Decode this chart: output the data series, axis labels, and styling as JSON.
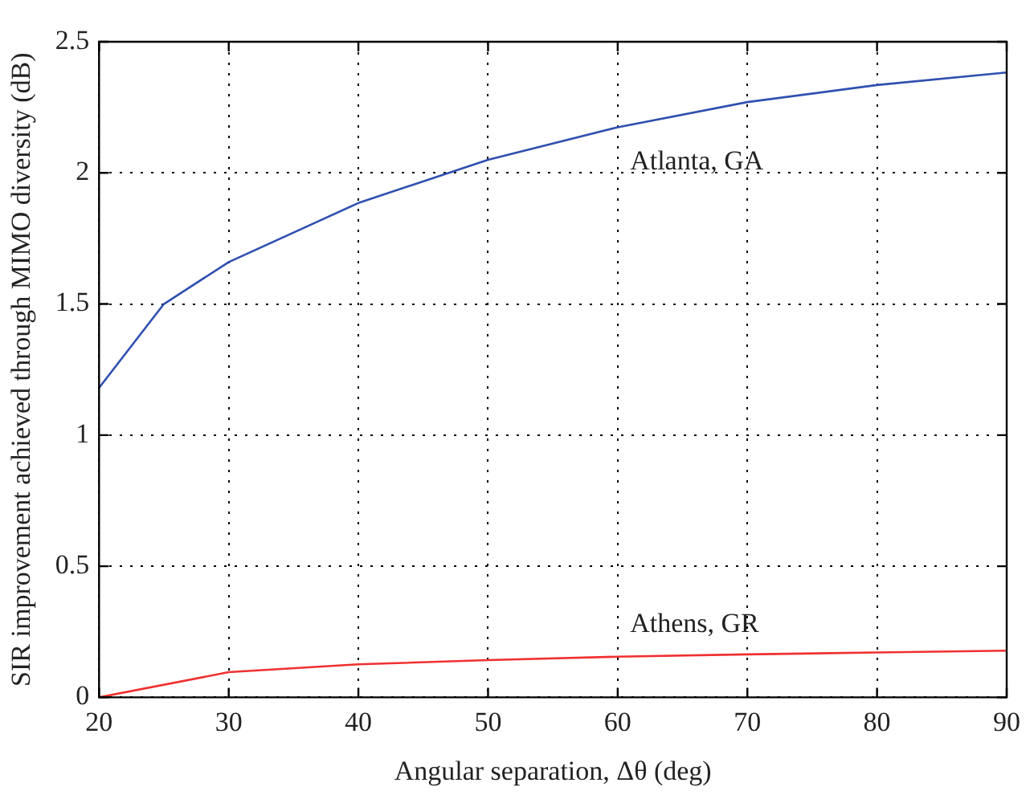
{
  "chart_data": {
    "type": "line",
    "xlabel": "Angular separation, Δθ (deg)",
    "ylabel": "SIR improvement achieved through MIMO diversity (dB)",
    "series": [
      {
        "name": "Atlanta, GA",
        "color": "#3050b0",
        "x": [
          20,
          25,
          30,
          40,
          50,
          60,
          70,
          80,
          90
        ],
        "values": [
          1.18,
          1.5,
          1.66,
          1.885,
          2.05,
          2.174,
          2.27,
          2.335,
          2.383
        ]
      },
      {
        "name": "Athens, GR",
        "color": "#f03030",
        "x": [
          20,
          30,
          40,
          50,
          60,
          70,
          80,
          90
        ],
        "values": [
          0,
          0.096,
          0.126,
          0.142,
          0.155,
          0.164,
          0.171,
          0.178
        ]
      }
    ],
    "xlim": [
      20,
      90
    ],
    "xticks": [
      20,
      30,
      40,
      50,
      60,
      70,
      80,
      90
    ],
    "ylim": [
      0,
      2.5
    ],
    "yticks": [
      0,
      0.5,
      1,
      1.5,
      2,
      2.5
    ],
    "grid": true,
    "legend": false,
    "marker": "none",
    "line_style": "solid"
  }
}
